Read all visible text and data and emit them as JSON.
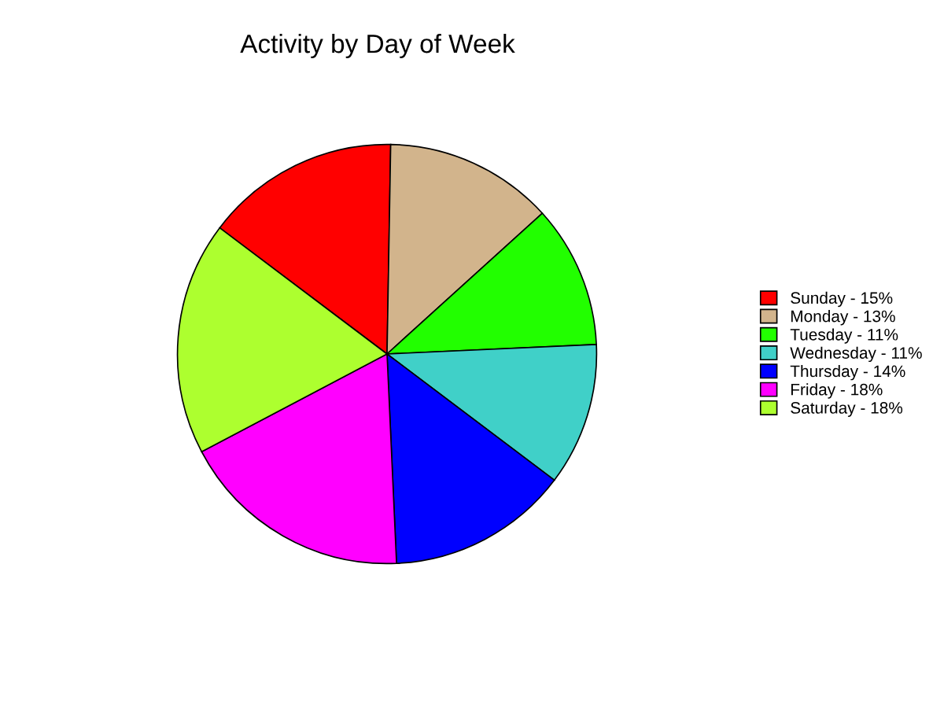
{
  "chart_data": {
    "type": "pie",
    "title": "Activity by Day of Week",
    "categories": [
      "Sunday - 15%",
      "Monday - 13%",
      "Tuesday - 11%",
      "Wednesday - 11%",
      "Thursday - 14%",
      "Friday - 18%",
      "Saturday - 18%"
    ],
    "values": [
      15,
      13,
      11,
      11,
      14,
      18,
      18
    ],
    "colors": [
      "#ff0000",
      "#d2b48c",
      "#22ff00",
      "#40d0c8",
      "#0000ff",
      "#ff00ff",
      "#adff2f"
    ],
    "legend": "right"
  }
}
